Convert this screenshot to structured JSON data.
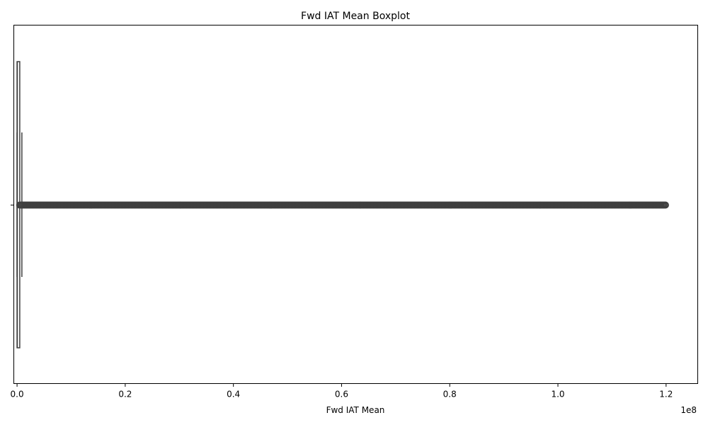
{
  "chart_data": {
    "type": "boxplot",
    "orientation": "horizontal",
    "title": "Fwd IAT Mean Boxplot",
    "xlabel": "Fwd IAT Mean",
    "ylabel": "",
    "x_scale_label": "1e8",
    "xlim": [
      -0.006,
      1.2585
    ],
    "x_ticks": [
      0.0,
      0.2,
      0.4,
      0.6,
      0.8,
      1.0,
      1.2
    ],
    "x_tick_labels": [
      "0.0",
      "0.2",
      "0.4",
      "0.6",
      "0.8",
      "1.0",
      "1.2"
    ],
    "y_categories": [
      ""
    ],
    "box": {
      "whisker_low": 0.0,
      "q1": 0.0,
      "median": 0.0005,
      "q3": 0.005,
      "whisker_high": 0.005
    },
    "outliers_range": [
      0.005,
      1.2
    ],
    "colors": {
      "box_edge": "#3f3f3f",
      "outliers": "#3f3f3f",
      "axes": "#000000"
    }
  }
}
